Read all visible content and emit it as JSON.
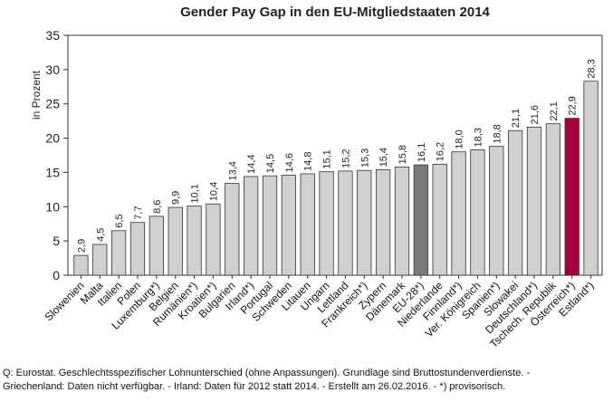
{
  "chart_data": {
    "type": "bar",
    "title": "Gender Pay Gap in den EU-Mitgliedstaaten 2014",
    "xlabel": "",
    "ylabel": "in Prozent",
    "ylim": [
      0,
      35
    ],
    "yticks": [
      0,
      5,
      10,
      15,
      20,
      25,
      30,
      35
    ],
    "grid": false,
    "categories": [
      "Slowenien",
      "Malta",
      "Italien",
      "Polen",
      "Luxemburg*)",
      "Belgien",
      "Rumänien*)",
      "Kroatien*)",
      "Bulgarien",
      "Irland*)",
      "Portugal",
      "Schweden",
      "Litauen",
      "Ungarn",
      "Lettland",
      "Frankreich*)",
      "Zypern",
      "Dänemark",
      "EU-28*)",
      "Niederlande",
      "Finnland*)",
      "Ver. Königreich",
      "Spanien*)",
      "Slowakei",
      "Deutschland*)",
      "Tschech. Republik",
      "Österreich*)",
      "Estland*)"
    ],
    "values": [
      2.9,
      4.5,
      6.5,
      7.7,
      8.6,
      9.9,
      10.1,
      10.4,
      13.4,
      14.4,
      14.5,
      14.6,
      14.8,
      15.1,
      15.2,
      15.3,
      15.4,
      15.8,
      16.1,
      16.2,
      18.0,
      18.3,
      18.8,
      21.1,
      21.6,
      22.1,
      22.9,
      28.3
    ],
    "value_labels": [
      "2,9",
      "4,5",
      "6,5",
      "7,7",
      "8,6",
      "9,9",
      "10,1",
      "10,4",
      "13,4",
      "14,4",
      "14,5",
      "14,6",
      "14,8",
      "15,1",
      "15,2",
      "15,3",
      "15,4",
      "15,8",
      "16,1",
      "16,2",
      "18,0",
      "18,3",
      "18,8",
      "21,1",
      "21,6",
      "22,1",
      "22,9",
      "28,3"
    ],
    "highlight": {
      "EU-28*)": "#7a7a7a",
      "Österreich*)": "#a6003c"
    },
    "colors": {
      "default_bar": "#d0d0d0",
      "bar_stroke": "#333333"
    }
  },
  "footnote": {
    "line1": "Q: Eurostat. Geschlechtsspezifischer Lohnunterschied (ohne Anpassungen). Grundlage sind Bruttostundenverdienste. -",
    "line2": "Griechenland: Daten nicht verfügbar. - Irland: Daten für 2012 statt 2014. - Erstellt am 26.02.2016. - *) provisorisch."
  }
}
